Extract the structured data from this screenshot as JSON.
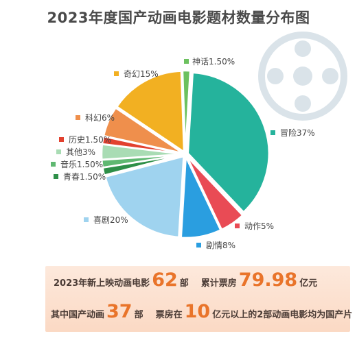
{
  "title": "2023年度国产动画电影题材数量分布图",
  "chart_data": {
    "type": "pie",
    "title": "2023年度国产动画电影题材数量分布图",
    "unit": "%",
    "slices": [
      {
        "label": "神话1.50%",
        "name": "神话",
        "value": 1.5,
        "color": "#6cc15f"
      },
      {
        "label": "冒险37%",
        "name": "冒险",
        "value": 37,
        "color": "#25b39c"
      },
      {
        "label": "动作5%",
        "name": "动作",
        "value": 5,
        "color": "#e94b55"
      },
      {
        "label": "剧情8%",
        "name": "剧情",
        "value": 8,
        "color": "#2a9ee0"
      },
      {
        "label": "喜剧20%",
        "name": "喜剧",
        "value": 20,
        "color": "#9fd3ef"
      },
      {
        "label": "青春1.50%",
        "name": "青春",
        "value": 1.5,
        "color": "#2e8f48"
      },
      {
        "label": "音乐1.50%",
        "name": "音乐",
        "value": 1.5,
        "color": "#5fb871"
      },
      {
        "label": "其他3%",
        "name": "其他",
        "value": 3,
        "color": "#a9dcb4"
      },
      {
        "label": "历史1.50%",
        "name": "历史",
        "value": 1.5,
        "color": "#e2412f"
      },
      {
        "label": "科幻6%",
        "name": "科幻",
        "value": 6,
        "color": "#ef8f4c"
      },
      {
        "label": "奇幻15%",
        "name": "奇幻",
        "value": 15,
        "color": "#f2b022"
      }
    ]
  },
  "stats": {
    "row1": {
      "prefix": "2023年新上映动画电影",
      "count": "62",
      "count_unit": "部",
      "box_office_label": "累计票房",
      "box_office": "79.98",
      "box_office_unit": "亿元"
    },
    "row2": {
      "prefix": "其中国产动画",
      "count": "37",
      "count_unit": "部",
      "mid": "票房在",
      "threshold": "10",
      "suffix": "亿元以上的2部动画电影均为国产片"
    }
  }
}
